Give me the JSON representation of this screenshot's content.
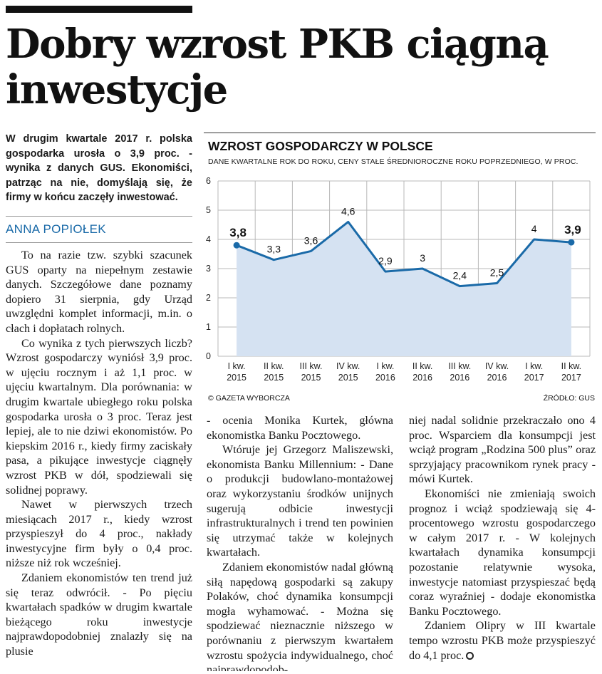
{
  "article": {
    "headline": "Dobry wzrost PKB ciągną inwestycje",
    "lead": "W drugim kwartale 2017 r. polska gospodarka urosła o 3,9 proc. - wynika z danych GUS. Ekonomiści, patrząc na nie, domyślają się, że firmy w końcu zaczęły inwestować.",
    "author": "ANNA POPIOŁEK"
  },
  "body": {
    "col1": [
      "To na razie tzw. szybki szacunek GUS oparty na niepełnym zestawie danych. Szczegółowe dane poznamy dopiero 31 sierpnia, gdy Urząd uwzględni komplet informacji, m.in. o cłach i dopłatach rolnych.",
      "Co wynika z tych pierwszych liczb? Wzrost gospodarczy wyniósł 3,9 proc. w ujęciu rocznym i aż 1,1 proc. w ujęciu kwartalnym. Dla porównania: w drugim kwartale ubiegłego roku polska gospodarka urosła o 3 proc. Teraz jest lepiej, ale to nie dziwi ekonomistów. Po kiepskim 2016 r., kiedy firmy zaciskały pasa, a pikujące inwestycje ciągnęły wzrost PKB w dół, spodziewali się solidnej poprawy.",
      "Nawet w pierwszych trzech miesiącach 2017 r., kiedy wzrost przyspieszył do 4 proc., nakłady inwestycyjne firm były o 0,4 proc. niższe niż rok wcześniej.",
      "Zdaniem ekonomistów ten trend już się teraz odwrócił. - Po pięciu kwartałach spadków w drugim kwartale bieżącego roku inwestycje najprawdopodobniej znalazły się na plusie"
    ],
    "col2": [
      "- ocenia Monika Kurtek, główna ekonomistka Banku Pocztowego.",
      "Wtóruje jej Grzegorz Maliszewski, ekonomista Banku Millennium: - Dane o produkcji budowlano-montażowej oraz wykorzystaniu środków unijnych sugerują odbicie inwestycji infrastrukturalnych i trend ten powinien się utrzymać także w kolejnych kwartałach.",
      "Zdaniem ekonomistów nadal główną siłą napędową gospodarki są zakupy Polaków, choć dynamika konsumpcji mogła wyhamować. - Można się spodziewać nieznacznie niższego w porównaniu z pierwszym kwartałem wzrostu spożycia indywidualnego, choć najprawdopodob-"
    ],
    "col3": [
      "niej nadal solidnie przekraczało ono 4 proc. Wsparciem dla konsumpcji jest wciąż program „Rodzina 500 plus” oraz sprzyjający pracownikom rynek pracy - mówi Kurtek.",
      "Ekonomiści nie zmieniają swoich prognoz i wciąż spodziewają się 4-procentowego wzrostu gospodarczego w całym 2017 r. - W kolejnych kwartałach dynamika konsumpcji pozostanie relatywnie wysoka, inwestycje natomiast przyspieszać będą coraz wyraźniej - dodaje ekonomistka Banku Pocztowego.",
      "Zdaniem Olipry w III kwartale tempo wzrostu PKB może przyspieszyć do 4,1 proc."
    ]
  },
  "chart": {
    "credit": "© GAZETA WYBORCZA",
    "source": "ŹRÓDŁO: GUS"
  },
  "chart_data": {
    "type": "area",
    "title": "WZROST GOSPODARCZY W POLSCE",
    "subtitle": "DANE KWARTALNE ROK DO ROKU, CENY STAŁE ŚREDNIOROCZNE ROKU POPRZEDNIEGO, W PROC.",
    "categories": [
      [
        "I kw.",
        "2015"
      ],
      [
        "II kw.",
        "2015"
      ],
      [
        "III kw.",
        "2015"
      ],
      [
        "IV kw.",
        "2015"
      ],
      [
        "I kw.",
        "2016"
      ],
      [
        "II kw.",
        "2016"
      ],
      [
        "III kw.",
        "2016"
      ],
      [
        "IV kw.",
        "2016"
      ],
      [
        "I kw.",
        "2017"
      ],
      [
        "II kw.",
        "2017"
      ]
    ],
    "values": [
      3.8,
      3.3,
      3.6,
      4.6,
      2.9,
      3.0,
      2.4,
      2.5,
      4.0,
      3.9
    ],
    "value_labels": [
      "3,8",
      "3,3",
      "3,6",
      "4,6",
      "2,9",
      "3",
      "2,4",
      "2,5",
      "4",
      "3,9"
    ],
    "highlighted_labels": [
      0,
      9
    ],
    "ylim": [
      0,
      6
    ],
    "yticks": [
      0,
      1,
      2,
      3,
      4,
      5,
      6
    ],
    "grid": true,
    "colors": {
      "line": "#1a6aa8",
      "fill": "#d5e2f2",
      "grid": "#b8b8b8"
    }
  }
}
